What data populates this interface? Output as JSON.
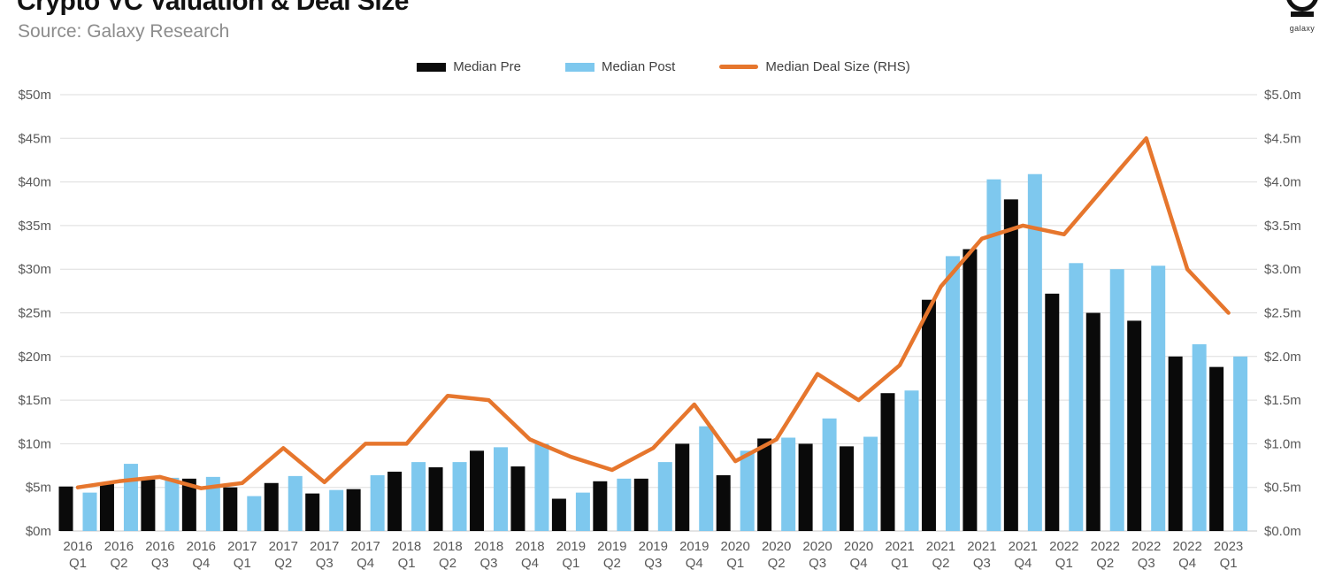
{
  "header": {
    "title": "Crypto VC Valuation & Deal Size",
    "source": "Source: Galaxy Research",
    "logo_label": "galaxy"
  },
  "legend": {
    "items": [
      {
        "label": "Median Pre",
        "color": "#0a0a0a",
        "type": "bar"
      },
      {
        "label": "Median Post",
        "color": "#7ec8ee",
        "type": "bar"
      },
      {
        "label": "Median Deal Size (RHS)",
        "color": "#e6762d",
        "type": "line"
      }
    ]
  },
  "chart_data": {
    "type": "bar",
    "subtype": "grouped-bars-with-rhs-line",
    "title": "Crypto VC Valuation & Deal Size",
    "categories": [
      "2016 Q1",
      "2016 Q2",
      "2016 Q3",
      "2016 Q4",
      "2017 Q1",
      "2017 Q2",
      "2017 Q3",
      "2017 Q4",
      "2018 Q1",
      "2018 Q2",
      "2018 Q3",
      "2018 Q4",
      "2019 Q1",
      "2019 Q2",
      "2019 Q3",
      "2019 Q4",
      "2020 Q1",
      "2020 Q2",
      "2020 Q3",
      "2020 Q4",
      "2021 Q1",
      "2021 Q2",
      "2021 Q3",
      "2021 Q4",
      "2022 Q1",
      "2022 Q2",
      "2022 Q3",
      "2022 Q4",
      "2023 Q1"
    ],
    "series": [
      {
        "name": "Median Pre",
        "type": "bar",
        "axis": "left",
        "color": "#0a0a0a",
        "values": [
          5.1,
          5.4,
          5.9,
          6.0,
          5.0,
          5.5,
          4.3,
          4.8,
          6.8,
          7.3,
          9.2,
          7.4,
          3.7,
          5.7,
          6.0,
          10.0,
          6.4,
          10.6,
          10.0,
          9.7,
          15.8,
          26.5,
          32.3,
          38.0,
          27.2,
          25.0,
          24.1,
          20.0,
          18.8
        ]
      },
      {
        "name": "Median Post",
        "type": "bar",
        "axis": "left",
        "color": "#7ec8ee",
        "values": [
          4.4,
          7.7,
          6.1,
          6.2,
          4.0,
          6.3,
          4.7,
          6.4,
          7.9,
          7.9,
          9.6,
          10.0,
          4.4,
          6.0,
          7.9,
          12.0,
          9.2,
          10.7,
          12.9,
          10.8,
          16.1,
          31.5,
          40.3,
          40.9,
          30.7,
          30.0,
          30.4,
          21.4,
          20.0
        ]
      },
      {
        "name": "Median Deal Size (RHS)",
        "type": "line",
        "axis": "right",
        "color": "#e6762d",
        "values": [
          0.5,
          0.57,
          0.62,
          0.49,
          0.55,
          0.95,
          0.56,
          1.0,
          1.0,
          1.55,
          1.5,
          1.05,
          0.85,
          0.7,
          0.95,
          1.45,
          0.8,
          1.05,
          1.8,
          1.5,
          1.9,
          2.8,
          3.35,
          3.5,
          3.4,
          3.95,
          4.5,
          3.0,
          2.5
        ]
      }
    ],
    "left_axis": {
      "min": 0,
      "max": 50,
      "tick_step": 5,
      "tick_labels": [
        "$0m",
        "$5m",
        "$10m",
        "$15m",
        "$20m",
        "$25m",
        "$30m",
        "$35m",
        "$40m",
        "$45m",
        "$50m"
      ]
    },
    "right_axis": {
      "min": 0,
      "max": 5,
      "tick_step": 0.5,
      "tick_labels": [
        "$0.0m",
        "$0.5m",
        "$1.0m",
        "$1.5m",
        "$2.0m",
        "$2.5m",
        "$3.0m",
        "$3.5m",
        "$4.0m",
        "$4.5m",
        "$5.0m"
      ]
    },
    "grid": true,
    "legend_position": "top-center"
  },
  "colors": {
    "grid": "#dddddd",
    "zero_line": "#c8c8c8",
    "tick_text": "#595959",
    "source_text": "#8c8c8c",
    "title_text": "#111111",
    "logo": "#111111"
  }
}
